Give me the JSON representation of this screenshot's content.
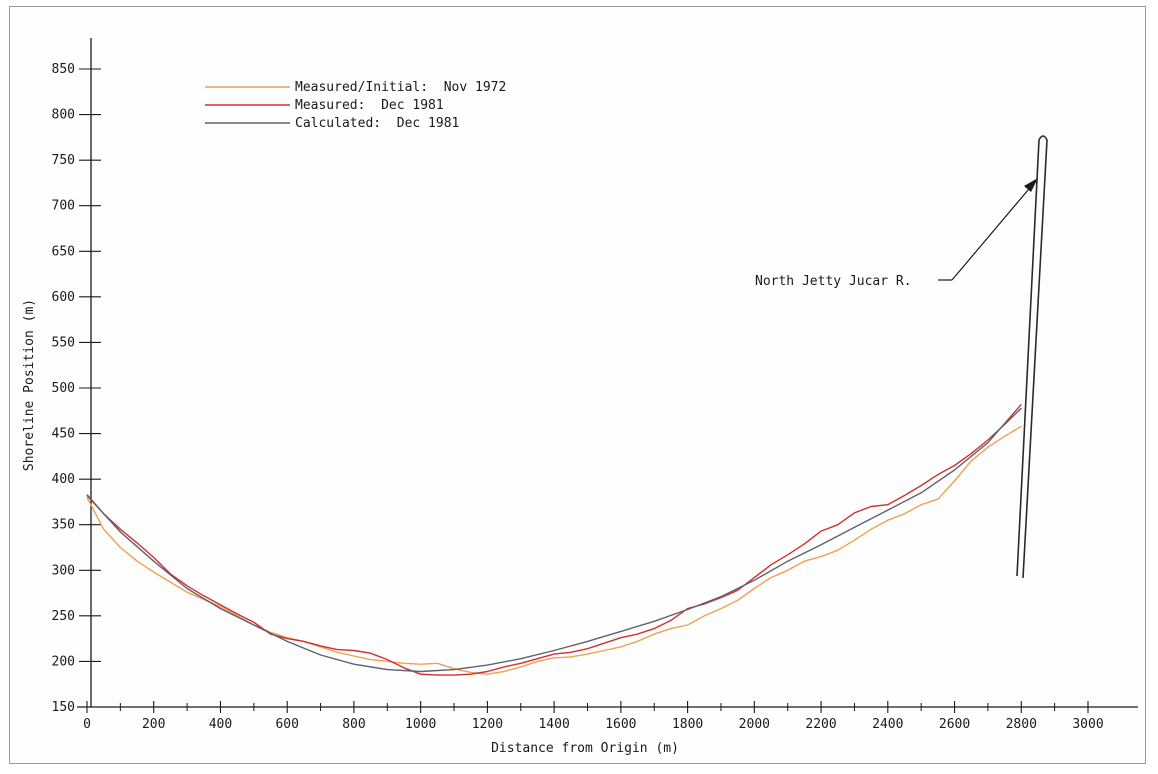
{
  "chart_data": {
    "type": "line",
    "title": "",
    "xlabel": "Distance from Origin (m)",
    "ylabel": "Shoreline Position (m)",
    "xlim": [
      0,
      3100
    ],
    "ylim": [
      150,
      880
    ],
    "xticks": [
      0,
      200,
      400,
      600,
      800,
      1000,
      1200,
      1400,
      1600,
      1800,
      2000,
      2200,
      2400,
      2600,
      2800,
      3000
    ],
    "yticks": [
      150,
      200,
      250,
      300,
      350,
      400,
      450,
      500,
      550,
      600,
      650,
      700,
      750,
      800,
      850
    ],
    "grid": false,
    "legend_position": "top-left",
    "series": [
      {
        "name": "Measured/Initial:  Nov 1972",
        "color": "#f0a050",
        "x": [
          0,
          50,
          100,
          150,
          200,
          250,
          300,
          350,
          400,
          450,
          500,
          550,
          600,
          650,
          700,
          750,
          800,
          850,
          900,
          950,
          1000,
          1050,
          1100,
          1150,
          1200,
          1250,
          1300,
          1350,
          1400,
          1450,
          1500,
          1550,
          1600,
          1650,
          1700,
          1750,
          1800,
          1850,
          1900,
          1950,
          2000,
          2050,
          2100,
          2150,
          2200,
          2250,
          2300,
          2350,
          2400,
          2450,
          2500,
          2550,
          2600,
          2650,
          2700,
          2750,
          2800
        ],
        "y": [
          380,
          345,
          325,
          310,
          298,
          287,
          276,
          268,
          260,
          250,
          240,
          232,
          226,
          222,
          216,
          210,
          206,
          202,
          200,
          198,
          197,
          198,
          192,
          188,
          186,
          189,
          194,
          200,
          204,
          205,
          208,
          212,
          216,
          222,
          230,
          236,
          240,
          250,
          258,
          267,
          280,
          292,
          300,
          310,
          315,
          322,
          333,
          345,
          355,
          362,
          372,
          378,
          398,
          420,
          435,
          447,
          458
        ]
      },
      {
        "name": "Measured:  Dec 1981",
        "color": "#d03030",
        "x": [
          0,
          50,
          100,
          150,
          200,
          250,
          300,
          350,
          400,
          450,
          500,
          550,
          600,
          650,
          700,
          750,
          800,
          850,
          900,
          950,
          1000,
          1050,
          1100,
          1150,
          1200,
          1250,
          1300,
          1350,
          1400,
          1450,
          1500,
          1550,
          1600,
          1650,
          1700,
          1750,
          1800,
          1850,
          1900,
          1950,
          2000,
          2050,
          2100,
          2150,
          2200,
          2250,
          2300,
          2350,
          2400,
          2450,
          2500,
          2550,
          2600,
          2650,
          2700,
          2750,
          2800
        ],
        "y": [
          383,
          362,
          345,
          330,
          314,
          296,
          283,
          272,
          262,
          252,
          243,
          230,
          225,
          222,
          217,
          213,
          212,
          209,
          202,
          193,
          186,
          185,
          185,
          186,
          189,
          194,
          198,
          203,
          208,
          210,
          214,
          220,
          226,
          230,
          236,
          245,
          258,
          263,
          270,
          278,
          292,
          306,
          317,
          329,
          343,
          350,
          363,
          370,
          372,
          382,
          393,
          405,
          415,
          428,
          443,
          460,
          478
        ]
      },
      {
        "name": "Calculated:  Dec 1981",
        "color": "#606070",
        "x": [
          0,
          100,
          200,
          300,
          400,
          500,
          600,
          700,
          800,
          900,
          1000,
          1100,
          1200,
          1300,
          1400,
          1500,
          1600,
          1700,
          1800,
          1900,
          2000,
          2100,
          2200,
          2300,
          2400,
          2500,
          2600,
          2700,
          2800
        ],
        "y": [
          382,
          342,
          310,
          280,
          258,
          240,
          222,
          207,
          197,
          191,
          189,
          191,
          196,
          203,
          212,
          222,
          233,
          244,
          257,
          271,
          289,
          310,
          328,
          347,
          366,
          385,
          410,
          440,
          482
        ]
      }
    ],
    "annotations": [
      {
        "text": "North Jetty Jucar R."
      }
    ]
  }
}
